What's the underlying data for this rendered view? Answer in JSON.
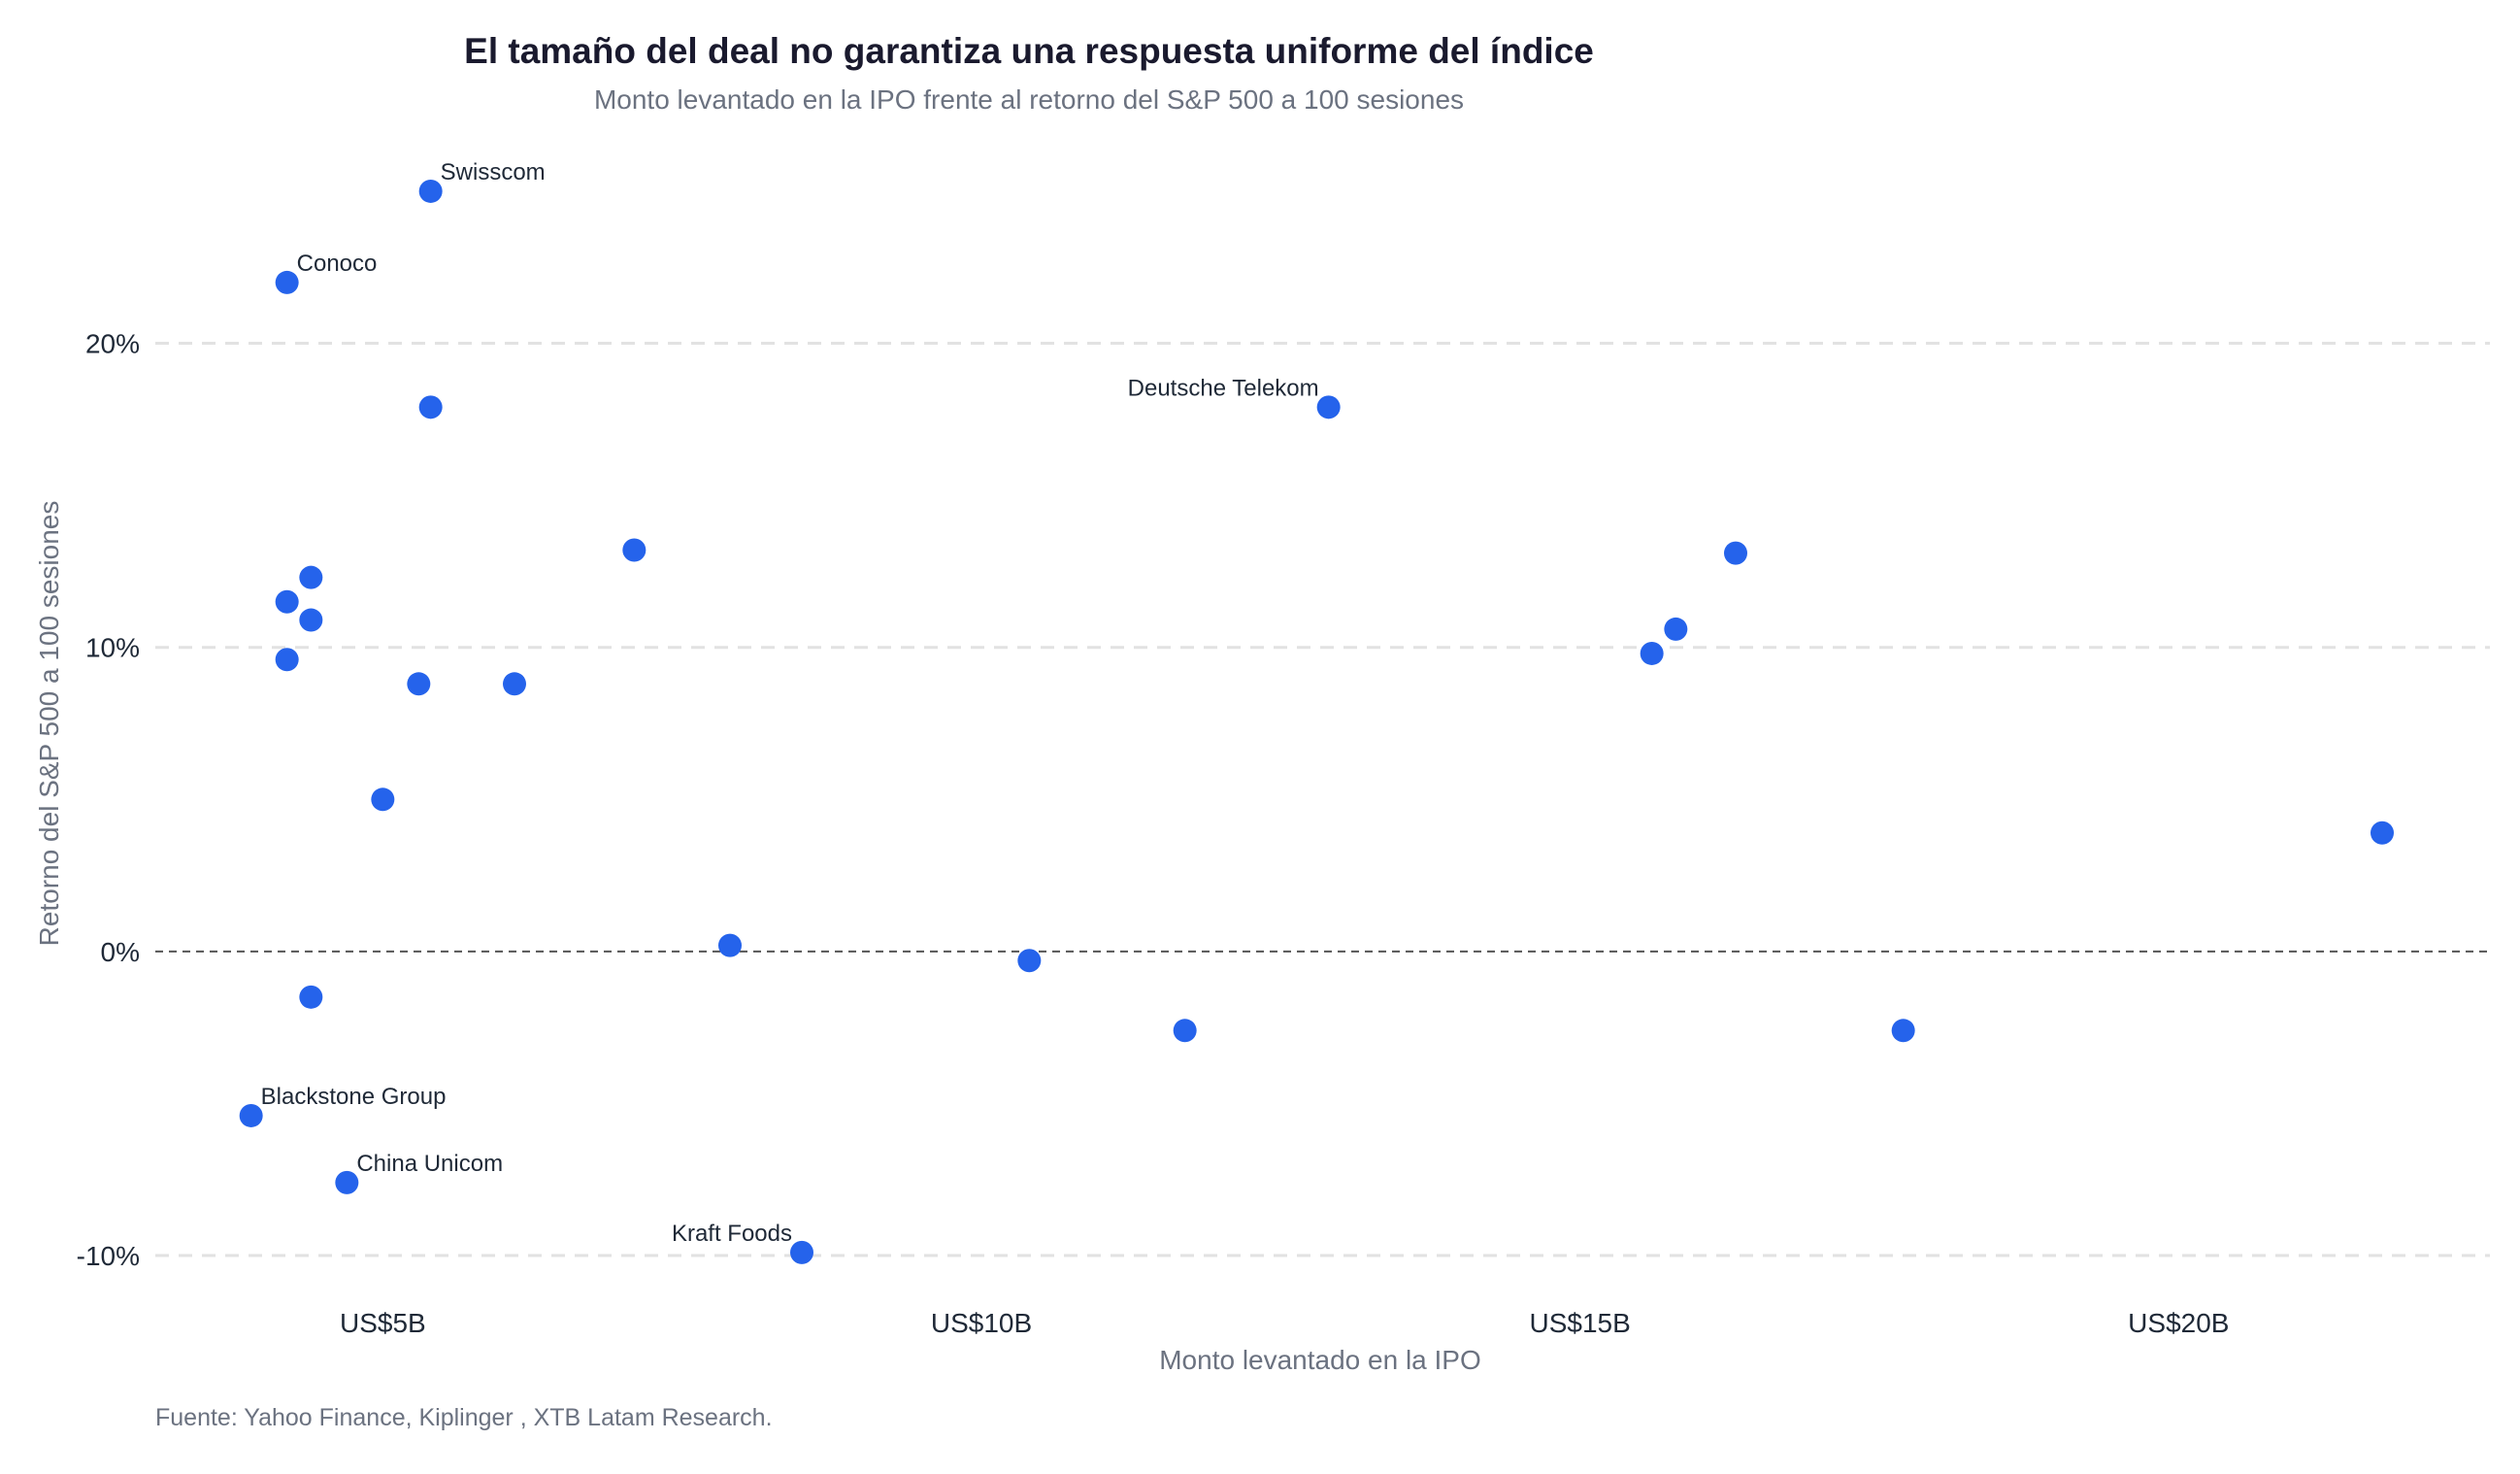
{
  "chart_data": {
    "type": "scatter",
    "title": "El tamaño del deal no garantiza una respuesta uniforme del índice",
    "subtitle": "Monto levantado en la IPO frente al retorno del S&P 500 a 100 sesiones",
    "xlabel": "Monto levantado en la IPO",
    "ylabel": "Retorno del S&P 500 a 100 sesiones",
    "source": "Fuente: Yahoo Finance, Kiplinger , XTB Latam Research.",
    "x_unit": "US$ billones",
    "y_unit": "%",
    "xlim": [
      3.1,
      22.6
    ],
    "ylim": [
      -11.5,
      26.5
    ],
    "x_ticks": [
      {
        "value": 5,
        "label": "US$5B"
      },
      {
        "value": 10,
        "label": "US$10B"
      },
      {
        "value": 15,
        "label": "US$15B"
      },
      {
        "value": 20,
        "label": "US$20B"
      }
    ],
    "y_ticks": [
      {
        "value": 20,
        "label": "20%"
      },
      {
        "value": 10,
        "label": "10%"
      },
      {
        "value": 0,
        "label": "0%"
      },
      {
        "value": -10,
        "label": "-10%"
      }
    ],
    "grid": "horizontal-dashed",
    "zero_line": true,
    "marker_color": "#2563eb",
    "points": [
      {
        "x": 5.4,
        "y": 25.0,
        "label": "Swisscom"
      },
      {
        "x": 4.2,
        "y": 22.0,
        "label": "Conoco"
      },
      {
        "x": 5.4,
        "y": 17.9,
        "label": ""
      },
      {
        "x": 12.9,
        "y": 17.9,
        "label": "Deutsche Telekom"
      },
      {
        "x": 7.1,
        "y": 13.2,
        "label": ""
      },
      {
        "x": 16.3,
        "y": 13.1,
        "label": ""
      },
      {
        "x": 4.4,
        "y": 12.3,
        "label": ""
      },
      {
        "x": 4.2,
        "y": 11.5,
        "label": ""
      },
      {
        "x": 4.4,
        "y": 10.9,
        "label": ""
      },
      {
        "x": 15.8,
        "y": 10.6,
        "label": ""
      },
      {
        "x": 15.6,
        "y": 9.8,
        "label": ""
      },
      {
        "x": 4.2,
        "y": 9.6,
        "label": ""
      },
      {
        "x": 5.3,
        "y": 8.8,
        "label": ""
      },
      {
        "x": 6.1,
        "y": 8.8,
        "label": ""
      },
      {
        "x": 5.0,
        "y": 5.0,
        "label": ""
      },
      {
        "x": 21.7,
        "y": 3.9,
        "label": ""
      },
      {
        "x": 7.9,
        "y": 0.2,
        "label": ""
      },
      {
        "x": 10.4,
        "y": -0.3,
        "label": ""
      },
      {
        "x": 4.4,
        "y": -1.5,
        "label": ""
      },
      {
        "x": 11.7,
        "y": -2.6,
        "label": ""
      },
      {
        "x": 17.7,
        "y": -2.6,
        "label": ""
      },
      {
        "x": 3.9,
        "y": -5.4,
        "label": "Blackstone Group"
      },
      {
        "x": 4.7,
        "y": -7.6,
        "label": "China Unicom"
      },
      {
        "x": 8.5,
        "y": -9.9,
        "label": "Kraft Foods"
      }
    ]
  }
}
